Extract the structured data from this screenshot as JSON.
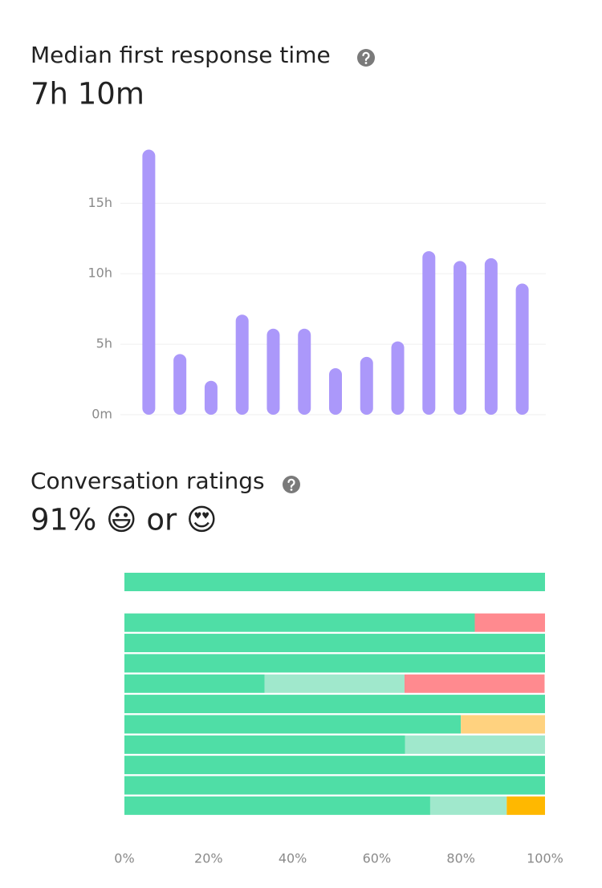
{
  "chart_data": [
    {
      "type": "bar",
      "title": "Median first response time",
      "subtitle": "7h 10m",
      "categories": [
        null,
        null,
        null,
        null,
        null,
        null,
        null,
        null,
        null,
        null,
        null,
        null,
        null
      ],
      "values": [
        18.8,
        4.3,
        2.4,
        7.1,
        6.1,
        6.1,
        3.3,
        4.1,
        5.2,
        11.6,
        10.9,
        11.1,
        9.3
      ],
      "color": "#ab98fa",
      "ylim": [
        0,
        19
      ],
      "yticks": [
        {
          "value": 0,
          "label": "0m"
        },
        {
          "value": 5,
          "label": "5h"
        },
        {
          "value": 10,
          "label": "10h"
        },
        {
          "value": 15,
          "label": "15h"
        }
      ],
      "grid": true
    },
    {
      "type": "barh",
      "stacked": true,
      "title": "Conversation ratings",
      "subtitle": "91% 😃 or 😍",
      "categories": [
        null,
        null,
        null,
        null,
        null,
        null,
        null,
        null,
        null,
        null,
        null,
        null
      ],
      "series": [
        {
          "color": "#4fdea6",
          "values": [
            100,
            null,
            83.3,
            100,
            100,
            33.3,
            100,
            80,
            66.7,
            100,
            100,
            72.7
          ]
        },
        {
          "color": "#a0e8cc",
          "values": [
            0,
            null,
            0,
            0,
            0,
            33.3,
            0,
            0,
            33.3,
            0,
            0,
            18.2
          ]
        },
        {
          "color": "#ffd27f",
          "values": [
            0,
            null,
            0,
            0,
            0,
            0,
            0,
            20,
            0,
            0,
            0,
            0
          ]
        },
        {
          "color": "#ffb800",
          "values": [
            0,
            null,
            0,
            0,
            0,
            0,
            0,
            0,
            0,
            0,
            0,
            9.1
          ]
        },
        {
          "color": "#ff8a8f",
          "values": [
            0,
            null,
            16.7,
            0,
            0,
            33.3,
            0,
            0,
            0,
            0,
            0,
            0
          ]
        }
      ],
      "xlim": [
        0,
        100
      ],
      "xticks": [
        {
          "value": 0,
          "label": "0%"
        },
        {
          "value": 20,
          "label": "20%"
        },
        {
          "value": 40,
          "label": "40%"
        },
        {
          "value": 60,
          "label": "60%"
        },
        {
          "value": 80,
          "label": "80%"
        },
        {
          "value": 100,
          "label": "100%"
        }
      ],
      "grid": false
    }
  ]
}
